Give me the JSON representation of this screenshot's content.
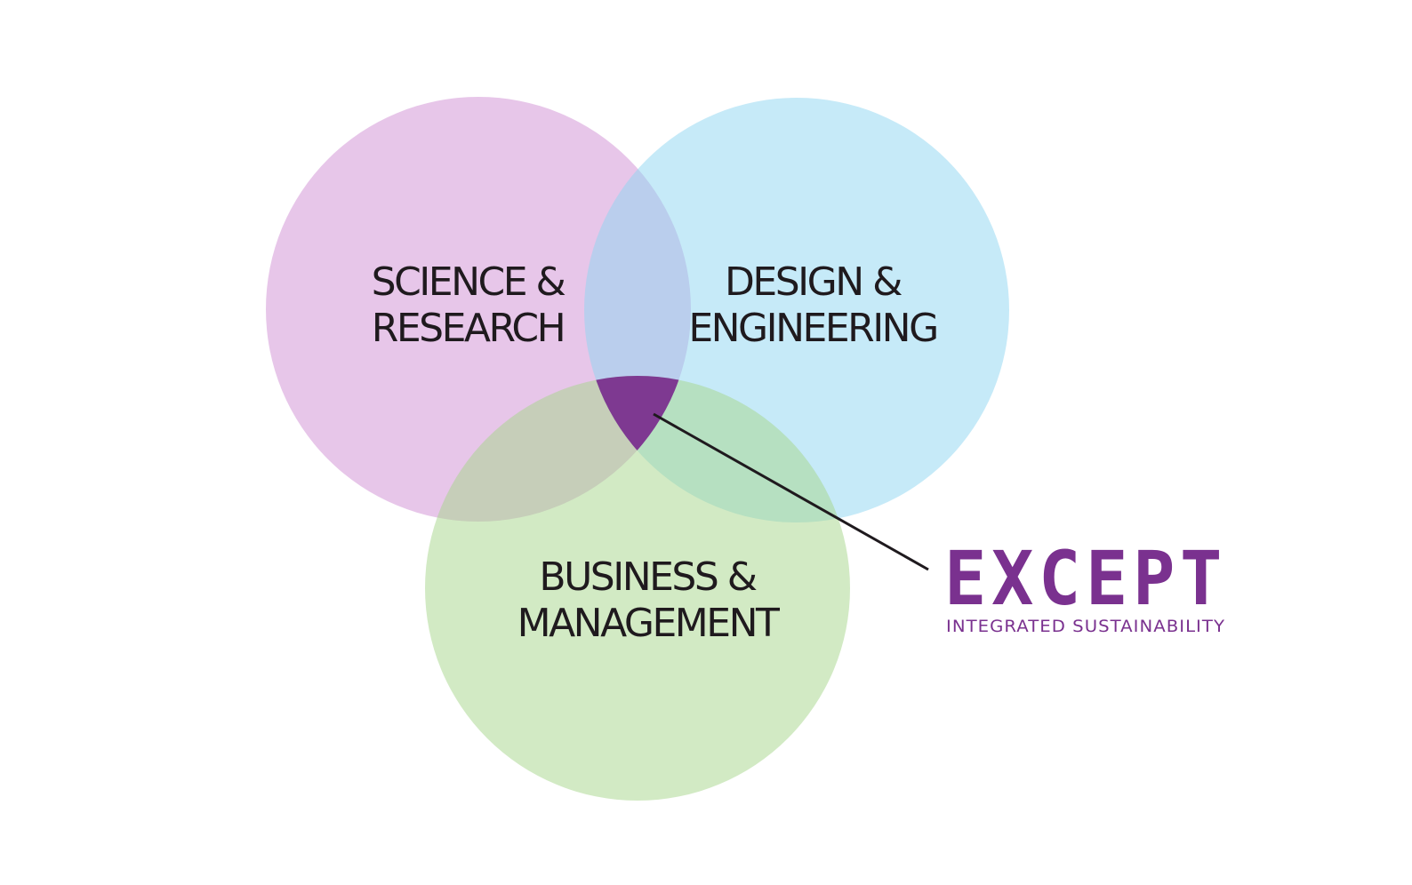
{
  "diagram": {
    "circles": [
      {
        "id": "science",
        "line1": "SCIENCE &",
        "line2": "RESEARCH",
        "color": "#cf8ed3"
      },
      {
        "id": "design",
        "line1": "DESIGN &",
        "line2": "ENGINEERING",
        "color": "#8dd5f2"
      },
      {
        "id": "business",
        "line1": "BUSINESS &",
        "line2": "MANAGEMENT",
        "color": "#a6d58a"
      }
    ],
    "circle_opacity": 0.5,
    "center_color": "#7e3991",
    "line_color": "#1f1a1e"
  },
  "brand": {
    "name": "EXCEPT",
    "tagline": "INTEGRATED SUSTAINABILITY",
    "color": "#7a318f"
  }
}
